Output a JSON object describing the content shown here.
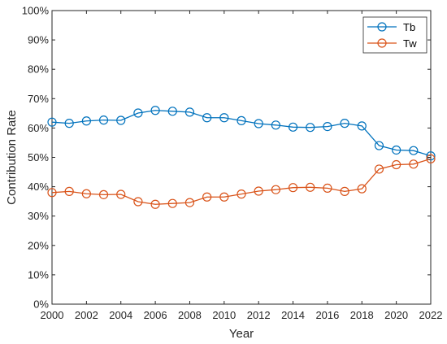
{
  "chart_data": {
    "type": "line",
    "xlabel": "Year",
    "ylabel": "Contribution Rate",
    "xlim": [
      2000,
      2022
    ],
    "ylim": [
      0,
      100
    ],
    "x_ticks": [
      2000,
      2002,
      2004,
      2006,
      2008,
      2010,
      2012,
      2014,
      2016,
      2018,
      2020,
      2022
    ],
    "x_tick_labels": [
      "2000",
      "2002",
      "2004",
      "2006",
      "2008",
      "2010",
      "2012",
      "2014",
      "2016",
      "2018",
      "2020",
      "2022"
    ],
    "y_ticks": [
      0,
      10,
      20,
      30,
      40,
      50,
      60,
      70,
      80,
      90,
      100
    ],
    "y_tick_labels": [
      "0%",
      "10%",
      "20%",
      "30%",
      "40%",
      "50%",
      "60%",
      "70%",
      "80%",
      "90%",
      "100%"
    ],
    "grid": false,
    "legend_position": "top-right",
    "x": [
      2000,
      2001,
      2002,
      2003,
      2004,
      2005,
      2006,
      2007,
      2008,
      2009,
      2010,
      2011,
      2012,
      2013,
      2014,
      2015,
      2016,
      2017,
      2018,
      2019,
      2020,
      2021,
      2022
    ],
    "series": [
      {
        "name": "Tb",
        "color": "#0072BD",
        "values": [
          62.0,
          61.6,
          62.4,
          62.7,
          62.6,
          65.1,
          66.0,
          65.7,
          65.4,
          63.5,
          63.5,
          62.5,
          61.5,
          61.0,
          60.3,
          60.2,
          60.5,
          61.6,
          60.7,
          54.0,
          52.5,
          52.3,
          50.5
        ]
      },
      {
        "name": "Tw",
        "color": "#D95319",
        "values": [
          38.0,
          38.4,
          37.6,
          37.3,
          37.4,
          34.9,
          34.0,
          34.3,
          34.6,
          36.5,
          36.5,
          37.5,
          38.5,
          39.0,
          39.7,
          39.8,
          39.5,
          38.4,
          39.3,
          46.0,
          47.5,
          47.7,
          49.5
        ]
      }
    ]
  }
}
